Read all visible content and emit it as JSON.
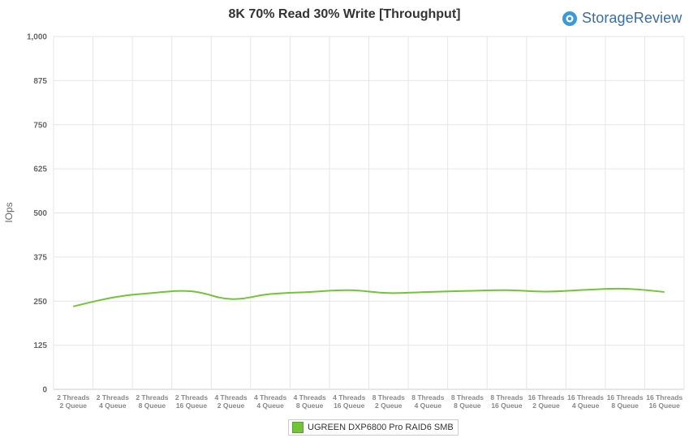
{
  "brand": {
    "name": "StorageReview",
    "color": "#3a6ea5"
  },
  "chart_data": {
    "type": "line",
    "title": "8K 70% Read 30% Write [Throughput]",
    "xlabel": "",
    "ylabel": "IOps",
    "ylim": [
      0,
      1000
    ],
    "yticks": [
      "0",
      "125",
      "250",
      "375",
      "500",
      "625",
      "750",
      "875",
      "1,000"
    ],
    "ytick_values": [
      0,
      125,
      250,
      375,
      500,
      625,
      750,
      875,
      1000
    ],
    "grid": true,
    "legend_position": "bottom-center",
    "categories": [
      [
        "2 Threads",
        "2 Queue"
      ],
      [
        "2 Threads",
        "4 Queue"
      ],
      [
        "2 Threads",
        "8 Queue"
      ],
      [
        "2 Threads",
        "16 Queue"
      ],
      [
        "4 Threads",
        "2 Queue"
      ],
      [
        "4 Threads",
        "4 Queue"
      ],
      [
        "4 Threads",
        "8 Queue"
      ],
      [
        "4 Threads",
        "16 Queue"
      ],
      [
        "8 Threads",
        "2 Queue"
      ],
      [
        "8 Threads",
        "4 Queue"
      ],
      [
        "8 Threads",
        "8 Queue"
      ],
      [
        "8 Threads",
        "16 Queue"
      ],
      [
        "16 Threads",
        "2 Queue"
      ],
      [
        "16 Threads",
        "4 Queue"
      ],
      [
        "16 Threads",
        "8 Queue"
      ],
      [
        "16 Threads",
        "16 Queue"
      ]
    ],
    "series": [
      {
        "name": "UGREEN DXP6800 Pro RAID6 SMB",
        "color": "#73c43a",
        "values": [
          235,
          260,
          273,
          278,
          256,
          270,
          276,
          281,
          273,
          276,
          279,
          281,
          277,
          282,
          285,
          276
        ]
      }
    ]
  }
}
